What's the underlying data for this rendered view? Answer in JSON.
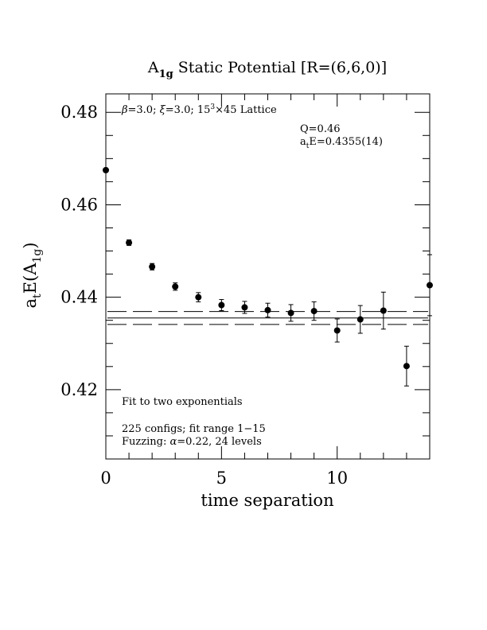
{
  "chart_data": {
    "type": "scatter",
    "title": {
      "pre": "A",
      "sub": "1g",
      "post": " Static Potential [R=(6,6,0)]"
    },
    "xlabel": "time separation",
    "ylabel": {
      "a": "a",
      "t": "t",
      "mid": "E(A",
      "sub": "1g",
      "close": ")"
    },
    "xlim": [
      0,
      14
    ],
    "ylim": [
      0.405,
      0.484
    ],
    "x_ticks_major": [
      0,
      5,
      10
    ],
    "x_tick_labels": [
      "0",
      "5",
      "10"
    ],
    "y_ticks_major": [
      0.42,
      0.44,
      0.46,
      0.48
    ],
    "y_tick_labels": [
      "0.42",
      "0.44",
      "0.46",
      "0.48"
    ],
    "grid": false,
    "legend": "none",
    "annotations": {
      "lattice": {
        "beta": "β",
        "beta_val": "=3.0; ",
        "xi": "ξ",
        "xi_val": "=3.0; 15",
        "sup": "3",
        "rest": "×45 Lattice"
      },
      "q": "Q=0.46",
      "energy": {
        "a": "a",
        "t": "t",
        "rest": "E=0.4355(14)"
      },
      "fit": "Fit to two exponentials",
      "configs": "225 configs; fit range 1−15",
      "fuzzing": {
        "pre": "Fuzzing: ",
        "alpha": "α",
        "post": "=0.22, 24 levels"
      }
    },
    "points": [
      {
        "x": 0,
        "y": 0.4675,
        "err": 0.0004
      },
      {
        "x": 1,
        "y": 0.4518,
        "err": 0.0006
      },
      {
        "x": 2,
        "y": 0.4466,
        "err": 0.0007
      },
      {
        "x": 3,
        "y": 0.4423,
        "err": 0.0008
      },
      {
        "x": 4,
        "y": 0.44,
        "err": 0.001
      },
      {
        "x": 5,
        "y": 0.4383,
        "err": 0.0012
      },
      {
        "x": 6,
        "y": 0.4378,
        "err": 0.0013
      },
      {
        "x": 7,
        "y": 0.4372,
        "err": 0.0015
      },
      {
        "x": 8,
        "y": 0.4366,
        "err": 0.0018
      },
      {
        "x": 9,
        "y": 0.437,
        "err": 0.002
      },
      {
        "x": 10,
        "y": 0.4328,
        "err": 0.0025
      },
      {
        "x": 11,
        "y": 0.4352,
        "err": 0.003
      },
      {
        "x": 12,
        "y": 0.4371,
        "err": 0.004
      },
      {
        "x": 13,
        "y": 0.4251,
        "err": 0.0043
      },
      {
        "x": 14,
        "y": 0.4426,
        "err": 0.0066
      }
    ],
    "fit": {
      "value": 0.4355,
      "error": 0.0014
    }
  }
}
